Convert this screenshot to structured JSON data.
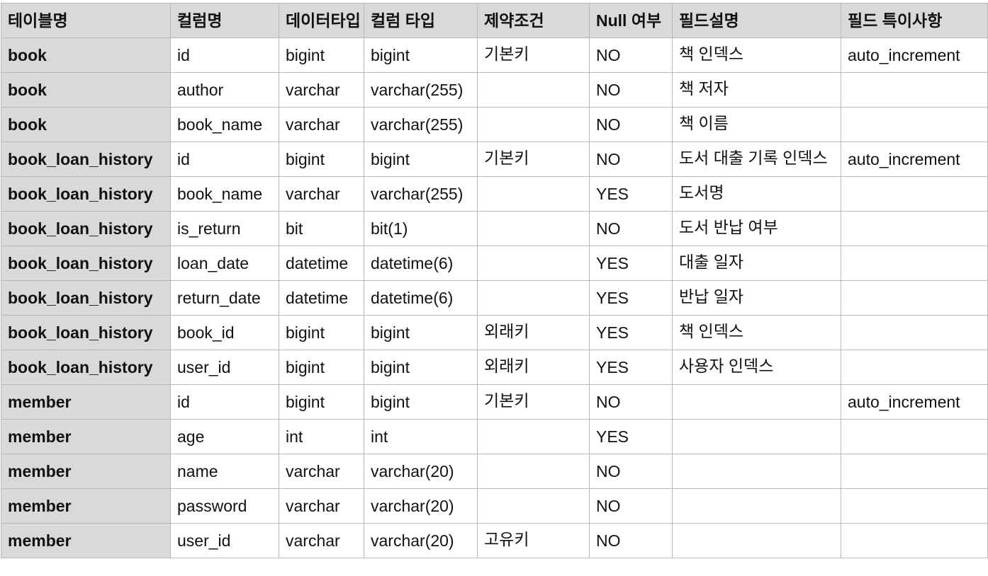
{
  "columns": [
    "테이블명",
    "컬럼명",
    "데이터타입",
    "컬럼 타입",
    "제약조건",
    "Null 여부",
    "필드설명",
    "필드 특이사항"
  ],
  "rows": [
    [
      "book",
      "id",
      "bigint",
      "bigint",
      "기본키",
      "NO",
      "책 인덱스",
      "auto_increment"
    ],
    [
      "book",
      "author",
      "varchar",
      "varchar(255)",
      "",
      "NO",
      "책 저자",
      ""
    ],
    [
      "book",
      "book_name",
      "varchar",
      "varchar(255)",
      "",
      "NO",
      "책 이름",
      ""
    ],
    [
      "book_loan_history",
      "id",
      "bigint",
      "bigint",
      "기본키",
      "NO",
      "도서 대출 기록 인덱스",
      "auto_increment"
    ],
    [
      "book_loan_history",
      "book_name",
      "varchar",
      "varchar(255)",
      "",
      "YES",
      "도서명",
      ""
    ],
    [
      "book_loan_history",
      "is_return",
      "bit",
      "bit(1)",
      "",
      "NO",
      "도서 반납 여부",
      ""
    ],
    [
      "book_loan_history",
      "loan_date",
      "datetime",
      "datetime(6)",
      "",
      "YES",
      "대출 일자",
      ""
    ],
    [
      "book_loan_history",
      "return_date",
      "datetime",
      "datetime(6)",
      "",
      "YES",
      "반납 일자",
      ""
    ],
    [
      "book_loan_history",
      "book_id",
      "bigint",
      "bigint",
      "외래키",
      "YES",
      "책 인덱스",
      ""
    ],
    [
      "book_loan_history",
      "user_id",
      "bigint",
      "bigint",
      "외래키",
      "YES",
      "사용자 인덱스",
      ""
    ],
    [
      "member",
      "id",
      "bigint",
      "bigint",
      "기본키",
      "NO",
      "",
      "auto_increment"
    ],
    [
      "member",
      "age",
      "int",
      "int",
      "",
      "YES",
      "",
      ""
    ],
    [
      "member",
      "name",
      "varchar",
      "varchar(20)",
      "",
      "NO",
      "",
      ""
    ],
    [
      "member",
      "password",
      "varchar",
      "varchar(20)",
      "",
      "NO",
      "",
      ""
    ],
    [
      "member",
      "user_id",
      "varchar",
      "varchar(20)",
      "고유키",
      "NO",
      "",
      ""
    ]
  ]
}
